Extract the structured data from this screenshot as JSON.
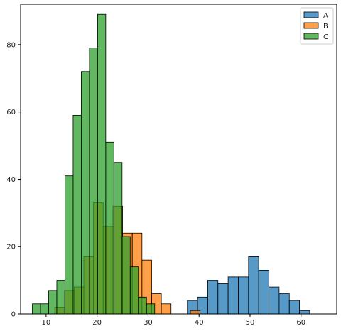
{
  "chart_data": {
    "type": "histogram",
    "title": "",
    "xlabel": "",
    "ylabel": "",
    "xlim": [
      5,
      67
    ],
    "ylim": [
      0,
      92
    ],
    "x_ticks": [
      10,
      20,
      30,
      40,
      50,
      60
    ],
    "y_ticks": [
      0,
      20,
      40,
      60,
      80
    ],
    "grid": false,
    "legend_position": "top-right",
    "bin_alpha": 0.75,
    "series": [
      {
        "name": "A",
        "color": "#1f77b4",
        "bin_width": 2,
        "bins": [
          {
            "x0": 37.7,
            "count": 4
          },
          {
            "x0": 39.7,
            "count": 5
          },
          {
            "x0": 41.7,
            "count": 10
          },
          {
            "x0": 43.7,
            "count": 9
          },
          {
            "x0": 45.7,
            "count": 11
          },
          {
            "x0": 47.7,
            "count": 11
          },
          {
            "x0": 49.7,
            "count": 17
          },
          {
            "x0": 51.7,
            "count": 13
          },
          {
            "x0": 53.7,
            "count": 8
          },
          {
            "x0": 55.7,
            "count": 6
          },
          {
            "x0": 57.7,
            "count": 4
          },
          {
            "x0": 59.7,
            "count": 1
          }
        ]
      },
      {
        "name": "B",
        "color": "#ff7f0e",
        "bin_width": 1.9,
        "bins": [
          {
            "x0": 11.7,
            "count": 2
          },
          {
            "x0": 13.6,
            "count": 7
          },
          {
            "x0": 15.5,
            "count": 8
          },
          {
            "x0": 17.4,
            "count": 17
          },
          {
            "x0": 19.3,
            "count": 33
          },
          {
            "x0": 21.2,
            "count": 26
          },
          {
            "x0": 23.1,
            "count": 32
          },
          {
            "x0": 25.0,
            "count": 24
          },
          {
            "x0": 26.9,
            "count": 24
          },
          {
            "x0": 28.8,
            "count": 16
          },
          {
            "x0": 30.7,
            "count": 6
          },
          {
            "x0": 32.6,
            "count": 3
          },
          {
            "x0": 34.5,
            "count": 0
          },
          {
            "x0": 36.4,
            "count": 0
          },
          {
            "x0": 38.3,
            "count": 1
          }
        ]
      },
      {
        "name": "C",
        "color": "#2ca02c",
        "bin_width": 1.6,
        "bins": [
          {
            "x0": 7.3,
            "count": 3
          },
          {
            "x0": 8.9,
            "count": 3
          },
          {
            "x0": 10.5,
            "count": 7
          },
          {
            "x0": 12.1,
            "count": 10
          },
          {
            "x0": 13.7,
            "count": 41
          },
          {
            "x0": 15.3,
            "count": 59
          },
          {
            "x0": 16.9,
            "count": 72
          },
          {
            "x0": 18.5,
            "count": 79
          },
          {
            "x0": 20.1,
            "count": 89
          },
          {
            "x0": 21.7,
            "count": 51
          },
          {
            "x0": 23.3,
            "count": 45
          },
          {
            "x0": 24.9,
            "count": 23
          },
          {
            "x0": 26.5,
            "count": 14
          },
          {
            "x0": 28.1,
            "count": 5
          },
          {
            "x0": 29.7,
            "count": 3
          }
        ]
      }
    ]
  }
}
